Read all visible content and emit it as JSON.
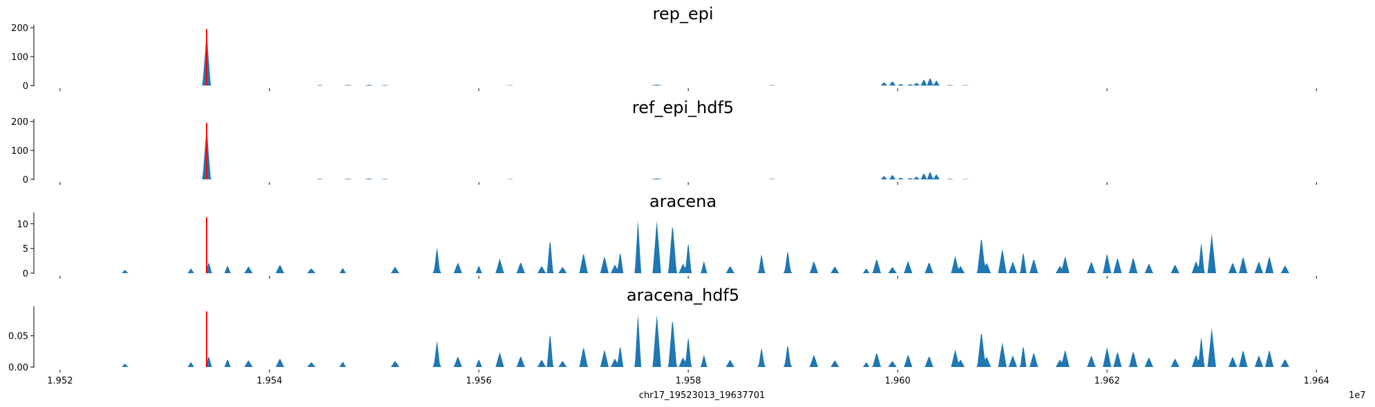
{
  "chart_data": {
    "type": "area",
    "xlabel": "chr17_19523013_19637701",
    "x_offset_label": "1e7",
    "xlim": [
      1.95175,
      1.96415
    ],
    "xticks": [
      1.952,
      1.954,
      1.956,
      1.958,
      1.96,
      1.962,
      1.964
    ],
    "xtick_labels": [
      "1.952",
      "1.954",
      "1.956",
      "1.958",
      "1.960",
      "1.962",
      "1.964"
    ],
    "fill_color": "#1f77b4",
    "marker_color": "#ff0000",
    "marker_x": 1.9534,
    "data_range": [
      1.9523,
      1.96377
    ],
    "panels": [
      {
        "title": "rep_epi",
        "ylim": [
          0,
          205
        ],
        "yticks": [
          0,
          100,
          200
        ],
        "ytick_labels": [
          "0",
          "100",
          "200"
        ],
        "marker_height": 195,
        "peaks": [
          [
            1.9534,
            180,
            4e-05
          ],
          [
            1.95448,
            2,
            4e-05
          ],
          [
            1.95475,
            2,
            5e-05
          ],
          [
            1.95495,
            3,
            4e-05
          ],
          [
            1.9551,
            2,
            4e-05
          ],
          [
            1.9577,
            3,
            6e-05
          ],
          [
            1.9563,
            1.5,
            4e-05
          ],
          [
            1.9588,
            1.5,
            4e-05
          ],
          [
            1.95987,
            12,
            3e-05
          ],
          [
            1.95995,
            16,
            3e-05
          ],
          [
            1.96003,
            6,
            3e-05
          ],
          [
            1.96012,
            5,
            3e-05
          ],
          [
            1.96018,
            10,
            3e-05
          ],
          [
            1.96025,
            22,
            3e-05
          ],
          [
            1.96031,
            28,
            3e-05
          ],
          [
            1.96037,
            18,
            3e-05
          ],
          [
            1.9605,
            2,
            4e-05
          ],
          [
            1.96065,
            1.5,
            4e-05
          ]
        ]
      },
      {
        "title": "ref_epi_hdf5",
        "ylim": [
          0,
          205
        ],
        "yticks": [
          0,
          100,
          200
        ],
        "ytick_labels": [
          "0",
          "100",
          "200"
        ],
        "marker_height": 195,
        "peaks": [
          [
            1.9534,
            180,
            4e-05
          ],
          [
            1.95448,
            2,
            4e-05
          ],
          [
            1.95475,
            2,
            5e-05
          ],
          [
            1.95495,
            3,
            4e-05
          ],
          [
            1.9551,
            2,
            4e-05
          ],
          [
            1.9577,
            3,
            6e-05
          ],
          [
            1.9563,
            1.5,
            4e-05
          ],
          [
            1.9588,
            1.5,
            4e-05
          ],
          [
            1.95987,
            12,
            3e-05
          ],
          [
            1.95995,
            16,
            3e-05
          ],
          [
            1.96003,
            6,
            3e-05
          ],
          [
            1.96012,
            5,
            3e-05
          ],
          [
            1.96018,
            10,
            3e-05
          ],
          [
            1.96025,
            22,
            3e-05
          ],
          [
            1.96031,
            28,
            3e-05
          ],
          [
            1.96037,
            18,
            3e-05
          ],
          [
            1.9605,
            2,
            4e-05
          ],
          [
            1.96065,
            1.5,
            4e-05
          ]
        ]
      },
      {
        "title": "aracena",
        "ylim": [
          0,
          12
        ],
        "yticks": [
          0,
          5,
          10
        ],
        "ytick_labels": [
          "0",
          "5",
          "10"
        ],
        "marker_height": 11.3,
        "peaks": [
          [
            1.95262,
            0.7,
            3e-05
          ],
          [
            1.95325,
            1.0,
            3e-05
          ],
          [
            1.95342,
            2.3,
            3e-05
          ],
          [
            1.9536,
            1.6,
            3e-05
          ],
          [
            1.9538,
            1.4,
            4e-05
          ],
          [
            1.9541,
            1.8,
            4e-05
          ],
          [
            1.9544,
            1.0,
            4e-05
          ],
          [
            1.9547,
            1.1,
            3e-05
          ],
          [
            1.9552,
            1.3,
            4e-05
          ],
          [
            1.9556,
            2.0,
            4e-05
          ],
          [
            1.9558,
            2.2,
            4e-05
          ],
          [
            1.956,
            1.6,
            3e-05
          ],
          [
            1.9562,
            2.8,
            3e-05
          ],
          [
            1.9564,
            2.3,
            4e-05
          ],
          [
            1.9566,
            1.5,
            4e-05
          ],
          [
            1.9568,
            1.3,
            4e-05
          ],
          [
            1.957,
            1.2,
            4e-05
          ],
          [
            1.9573,
            1.8,
            4e-05
          ],
          [
            1.95752,
            11.0,
            3e-05
          ],
          [
            1.9577,
            1.6,
            4e-05
          ],
          [
            1.95795,
            2.0,
            4e-05
          ],
          [
            1.95815,
            2.5,
            3e-05
          ],
          [
            1.9584,
            1.5,
            4e-05
          ],
          [
            1.9587,
            1.2,
            4e-05
          ],
          [
            1.95895,
            2.0,
            4e-05
          ],
          [
            1.9592,
            2.5,
            4e-05
          ],
          [
            1.9594,
            1.4,
            4e-05
          ],
          [
            1.9597,
            1.0,
            3e-05
          ],
          [
            1.95995,
            1.3,
            4e-05
          ],
          [
            1.9601,
            1.0,
            3e-05
          ],
          [
            1.9603,
            2.3,
            4e-05
          ],
          [
            1.9606,
            1.5,
            4e-05
          ],
          [
            1.96085,
            2.2,
            4e-05
          ],
          [
            1.9611,
            2.4,
            4e-05
          ],
          [
            1.9613,
            3.0,
            4e-05
          ],
          [
            1.96155,
            1.5,
            4e-05
          ],
          [
            1.96185,
            2.4,
            4e-05
          ],
          [
            1.9621,
            3.2,
            4e-05
          ],
          [
            1.9624,
            2.0,
            4e-05
          ],
          [
            1.96265,
            1.8,
            4e-05
          ],
          [
            1.96285,
            2.5,
            4e-05
          ],
          [
            1.9632,
            2.2,
            4e-05
          ],
          [
            1.96345,
            2.4,
            4e-05
          ],
          [
            1.9637,
            1.6,
            4e-05
          ],
          [
            1.9556,
            5.5,
            3e-05
          ],
          [
            1.9562,
            3.0,
            4e-05
          ],
          [
            1.95668,
            7.2,
            3e-05
          ],
          [
            1.957,
            4.2,
            4e-05
          ],
          [
            1.9572,
            3.5,
            4e-05
          ],
          [
            1.95735,
            4.5,
            3e-05
          ],
          [
            1.9577,
            10.8,
            4e-05
          ],
          [
            1.95785,
            10.2,
            4e-05
          ],
          [
            1.958,
            6.5,
            3e-05
          ],
          [
            1.9587,
            4.0,
            3e-05
          ],
          [
            1.95895,
            4.8,
            3e-05
          ],
          [
            1.9598,
            3.0,
            4e-05
          ],
          [
            1.9601,
            2.5,
            4e-05
          ],
          [
            1.96055,
            3.5,
            4e-05
          ],
          [
            1.9608,
            7.5,
            4e-05
          ],
          [
            1.961,
            5.0,
            4e-05
          ],
          [
            1.9612,
            4.5,
            3e-05
          ],
          [
            1.9616,
            3.5,
            4e-05
          ],
          [
            1.962,
            4.0,
            4e-05
          ],
          [
            1.96225,
            3.3,
            4e-05
          ],
          [
            1.9629,
            6.5,
            3e-05
          ],
          [
            1.963,
            8.0,
            4e-05
          ],
          [
            1.9633,
            3.5,
            4e-05
          ],
          [
            1.96355,
            3.5,
            4e-05
          ]
        ]
      },
      {
        "title": "aracena_hdf5",
        "ylim": [
          0,
          0.095
        ],
        "yticks": [
          0,
          0.05
        ],
        "ytick_labels": [
          "0.00",
          "0.05"
        ],
        "marker_height": 0.089,
        "peaks": [
          [
            1.95262,
            0.0055,
            3e-05
          ],
          [
            1.95325,
            0.008,
            3e-05
          ],
          [
            1.95342,
            0.018,
            3e-05
          ],
          [
            1.9536,
            0.013,
            3e-05
          ],
          [
            1.9538,
            0.011,
            4e-05
          ],
          [
            1.9541,
            0.014,
            4e-05
          ],
          [
            1.9544,
            0.008,
            4e-05
          ],
          [
            1.9547,
            0.009,
            3e-05
          ],
          [
            1.9552,
            0.01,
            4e-05
          ],
          [
            1.9556,
            0.016,
            4e-05
          ],
          [
            1.9558,
            0.017,
            4e-05
          ],
          [
            1.956,
            0.013,
            3e-05
          ],
          [
            1.9562,
            0.022,
            3e-05
          ],
          [
            1.9564,
            0.018,
            4e-05
          ],
          [
            1.9566,
            0.012,
            4e-05
          ],
          [
            1.9568,
            0.01,
            4e-05
          ],
          [
            1.957,
            0.01,
            4e-05
          ],
          [
            1.9573,
            0.014,
            4e-05
          ],
          [
            1.95752,
            0.087,
            3e-05
          ],
          [
            1.9577,
            0.013,
            4e-05
          ],
          [
            1.95795,
            0.016,
            4e-05
          ],
          [
            1.95815,
            0.02,
            3e-05
          ],
          [
            1.9584,
            0.012,
            4e-05
          ],
          [
            1.9587,
            0.01,
            4e-05
          ],
          [
            1.95895,
            0.016,
            4e-05
          ],
          [
            1.9592,
            0.02,
            4e-05
          ],
          [
            1.9594,
            0.011,
            4e-05
          ],
          [
            1.9597,
            0.008,
            3e-05
          ],
          [
            1.95995,
            0.01,
            4e-05
          ],
          [
            1.9601,
            0.008,
            3e-05
          ],
          [
            1.9603,
            0.018,
            4e-05
          ],
          [
            1.9606,
            0.012,
            4e-05
          ],
          [
            1.96085,
            0.017,
            4e-05
          ],
          [
            1.9611,
            0.019,
            4e-05
          ],
          [
            1.9613,
            0.024,
            4e-05
          ],
          [
            1.96155,
            0.012,
            4e-05
          ],
          [
            1.96185,
            0.019,
            4e-05
          ],
          [
            1.9621,
            0.025,
            4e-05
          ],
          [
            1.9624,
            0.016,
            4e-05
          ],
          [
            1.96265,
            0.014,
            4e-05
          ],
          [
            1.96285,
            0.02,
            4e-05
          ],
          [
            1.9632,
            0.017,
            4e-05
          ],
          [
            1.96345,
            0.019,
            4e-05
          ],
          [
            1.9637,
            0.013,
            4e-05
          ],
          [
            1.9556,
            0.044,
            3e-05
          ],
          [
            1.9562,
            0.024,
            4e-05
          ],
          [
            1.95668,
            0.057,
            3e-05
          ],
          [
            1.957,
            0.033,
            4e-05
          ],
          [
            1.9572,
            0.028,
            4e-05
          ],
          [
            1.95735,
            0.036,
            3e-05
          ],
          [
            1.9577,
            0.085,
            4e-05
          ],
          [
            1.95785,
            0.08,
            4e-05
          ],
          [
            1.958,
            0.051,
            3e-05
          ],
          [
            1.9587,
            0.032,
            3e-05
          ],
          [
            1.95895,
            0.038,
            3e-05
          ],
          [
            1.9598,
            0.024,
            4e-05
          ],
          [
            1.9601,
            0.02,
            4e-05
          ],
          [
            1.96055,
            0.028,
            4e-05
          ],
          [
            1.9608,
            0.059,
            4e-05
          ],
          [
            1.961,
            0.04,
            4e-05
          ],
          [
            1.9612,
            0.036,
            3e-05
          ],
          [
            1.9616,
            0.028,
            4e-05
          ],
          [
            1.962,
            0.032,
            4e-05
          ],
          [
            1.96225,
            0.026,
            4e-05
          ],
          [
            1.9629,
            0.051,
            3e-05
          ],
          [
            1.963,
            0.063,
            4e-05
          ],
          [
            1.9633,
            0.028,
            4e-05
          ],
          [
            1.96355,
            0.028,
            4e-05
          ]
        ]
      }
    ]
  }
}
